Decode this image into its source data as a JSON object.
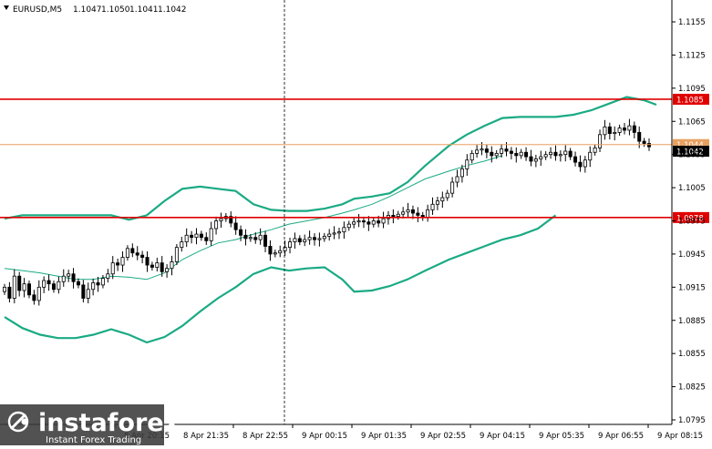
{
  "chart_data": {
    "type": "candlestick",
    "symbol": "EURUSD,M5",
    "ohlc": [
      "1.1047",
      "1.1050",
      "1.1041",
      "1.1042"
    ],
    "ylim": [
      1.079,
      1.117
    ],
    "yticks": [
      "1.1155",
      "1.1125",
      "1.1095",
      "1.1065",
      "1.1035",
      "1.1005",
      "1.0975",
      "1.0945",
      "1.0915",
      "1.0885",
      "1.0855",
      "1.0825",
      "1.0795"
    ],
    "xlabels": [
      "8 Apr 20:15",
      "8 Apr 21:35",
      "8 Apr 22:55",
      "9 Apr 00:15",
      "9 Apr 01:35",
      "9 Apr 02:55",
      "9 Apr 04:15",
      "9 Apr 05:35",
      "9 Apr 06:55",
      "9 Apr 08:15"
    ],
    "levels": [
      {
        "label": "1.1085",
        "value": 1.1085,
        "color": "#e00000"
      },
      {
        "label": "1.0978",
        "value": 1.0978,
        "color": "#e00000"
      },
      {
        "label": "1.1044",
        "value": 1.1044,
        "color": "#e8a060"
      }
    ],
    "last_price": "1.1042",
    "grid": false,
    "series_closes": [
      1.0915,
      1.0905,
      1.0925,
      1.0912,
      1.0918,
      1.0908,
      1.0903,
      1.0915,
      1.0921,
      1.0918,
      1.0913,
      1.092,
      1.0925,
      1.0927,
      1.092,
      1.0917,
      1.0905,
      1.0913,
      1.0919,
      1.0917,
      1.0923,
      1.0927,
      1.0937,
      1.0935,
      1.0942,
      1.095,
      1.0946,
      1.0944,
      1.0942,
      1.0935,
      1.0933,
      1.0937,
      1.0929,
      1.0932,
      1.0938,
      1.0951,
      1.0956,
      1.0962,
      1.096,
      1.0963,
      1.096,
      1.0957,
      1.0968,
      1.0975,
      1.0977,
      1.0979,
      1.0973,
      1.0967,
      1.0962,
      1.0959,
      1.096,
      1.0958,
      1.0962,
      1.0952,
      1.0945,
      1.0946,
      1.0948,
      1.0951,
      1.0956,
      1.0959,
      1.0956,
      1.0958,
      1.096,
      1.0958,
      1.0959,
      1.0961,
      1.0963,
      1.0964,
      1.0965,
      1.0969,
      1.0972,
      1.0974,
      1.0975,
      1.0974,
      1.0972,
      1.0975,
      1.0973,
      1.0977,
      1.098,
      1.0979,
      1.0981,
      1.0983,
      1.0985,
      1.0982,
      1.098,
      1.0978,
      1.0985,
      1.099,
      1.0993,
      1.0996,
      1.1,
      1.101,
      1.1015,
      1.1022,
      1.103,
      1.1036,
      1.1039,
      1.104,
      1.1037,
      1.1034,
      1.1036,
      1.104,
      1.1038,
      1.1036,
      1.1034,
      1.1037,
      1.1033,
      1.1029,
      1.1031,
      1.1033,
      1.1035,
      1.1037,
      1.1034,
      1.1035,
      1.1038,
      1.1033,
      1.1028,
      1.1024,
      1.103,
      1.1037,
      1.1041,
      1.1053,
      1.106,
      1.1054,
      1.1055,
      1.1059,
      1.1057,
      1.1061,
      1.1055,
      1.1047,
      1.1045,
      1.1042
    ],
    "bollinger": {
      "upper": [
        [
          1.0977,
          0
        ],
        [
          1.098,
          6
        ],
        [
          1.098,
          12
        ],
        [
          1.098,
          18
        ],
        [
          1.098,
          24
        ],
        [
          1.098,
          30
        ],
        [
          1.098,
          36
        ],
        [
          1.0976,
          42
        ],
        [
          1.098,
          48
        ],
        [
          1.0993,
          54
        ],
        [
          1.1004,
          60
        ],
        [
          1.1006,
          66
        ],
        [
          1.1004,
          72
        ],
        [
          1.1002,
          78
        ],
        [
          1.099,
          84
        ],
        [
          1.0985,
          90
        ],
        [
          1.0984,
          96
        ],
        [
          1.0984,
          102
        ],
        [
          1.0986,
          108
        ],
        [
          1.099,
          114
        ],
        [
          1.0995,
          118
        ],
        [
          1.0997,
          124
        ],
        [
          1.1,
          130
        ],
        [
          1.101,
          136
        ],
        [
          1.1025,
          142
        ],
        [
          1.1043,
          150
        ],
        [
          1.1053,
          156
        ],
        [
          1.1061,
          162
        ],
        [
          1.1068,
          168
        ],
        [
          1.1069,
          174
        ],
        [
          1.1069,
          180
        ],
        [
          1.1069,
          186
        ],
        [
          1.1071,
          192
        ],
        [
          1.1075,
          198
        ],
        [
          1.1081,
          204
        ],
        [
          1.1087,
          210
        ],
        [
          1.1084,
          216
        ],
        [
          1.108,
          220
        ]
      ],
      "lower": [
        [
          1.0888,
          0
        ],
        [
          1.0878,
          6
        ],
        [
          1.0872,
          12
        ],
        [
          1.0869,
          18
        ],
        [
          1.0869,
          24
        ],
        [
          1.0872,
          30
        ],
        [
          1.0877,
          36
        ],
        [
          1.0872,
          42
        ],
        [
          1.0865,
          48
        ],
        [
          1.087,
          54
        ],
        [
          1.088,
          60
        ],
        [
          1.0893,
          66
        ],
        [
          1.0905,
          72
        ],
        [
          1.0915,
          78
        ],
        [
          1.0927,
          84
        ],
        [
          1.0933,
          90
        ],
        [
          1.093,
          96
        ],
        [
          1.0932,
          102
        ],
        [
          1.0933,
          108
        ],
        [
          1.0922,
          114
        ],
        [
          1.0911,
          118
        ],
        [
          1.0912,
          124
        ],
        [
          1.0916,
          130
        ],
        [
          1.0922,
          136
        ],
        [
          1.093,
          142
        ],
        [
          1.094,
          150
        ],
        [
          1.0946,
          156
        ],
        [
          1.0952,
          162
        ],
        [
          1.0958,
          168
        ],
        [
          1.0962,
          174
        ],
        [
          1.0968,
          180
        ],
        [
          1.098,
          186
        ]
      ],
      "middle": [
        [
          1.0932,
          0
        ],
        [
          1.093,
          6
        ],
        [
          1.0928,
          12
        ],
        [
          1.0925,
          18
        ],
        [
          1.0922,
          24
        ],
        [
          1.0922,
          30
        ],
        [
          1.0925,
          36
        ],
        [
          1.0924,
          42
        ],
        [
          1.0922,
          48
        ],
        [
          1.0928,
          54
        ],
        [
          1.094,
          60
        ],
        [
          1.0948,
          66
        ],
        [
          1.0955,
          72
        ],
        [
          1.0958,
          78
        ],
        [
          1.0963,
          84
        ],
        [
          1.0967,
          90
        ],
        [
          1.0972,
          96
        ],
        [
          1.0975,
          102
        ],
        [
          1.0978,
          108
        ],
        [
          1.0982,
          114
        ],
        [
          1.0985,
          118
        ],
        [
          1.099,
          124
        ],
        [
          1.0997,
          130
        ],
        [
          1.1005,
          136
        ],
        [
          1.1013,
          142
        ],
        [
          1.102,
          150
        ],
        [
          1.1025,
          156
        ],
        [
          1.1029,
          162
        ],
        [
          1.1034,
          168
        ]
      ]
    }
  },
  "watermark": {
    "brand": "instaforex",
    "tagline": "Instant Forex Trading"
  },
  "colors": {
    "bands": "#1aaa84",
    "level_red": "#e00000",
    "current_price_line": "#e8a060",
    "candle": "#000000"
  }
}
